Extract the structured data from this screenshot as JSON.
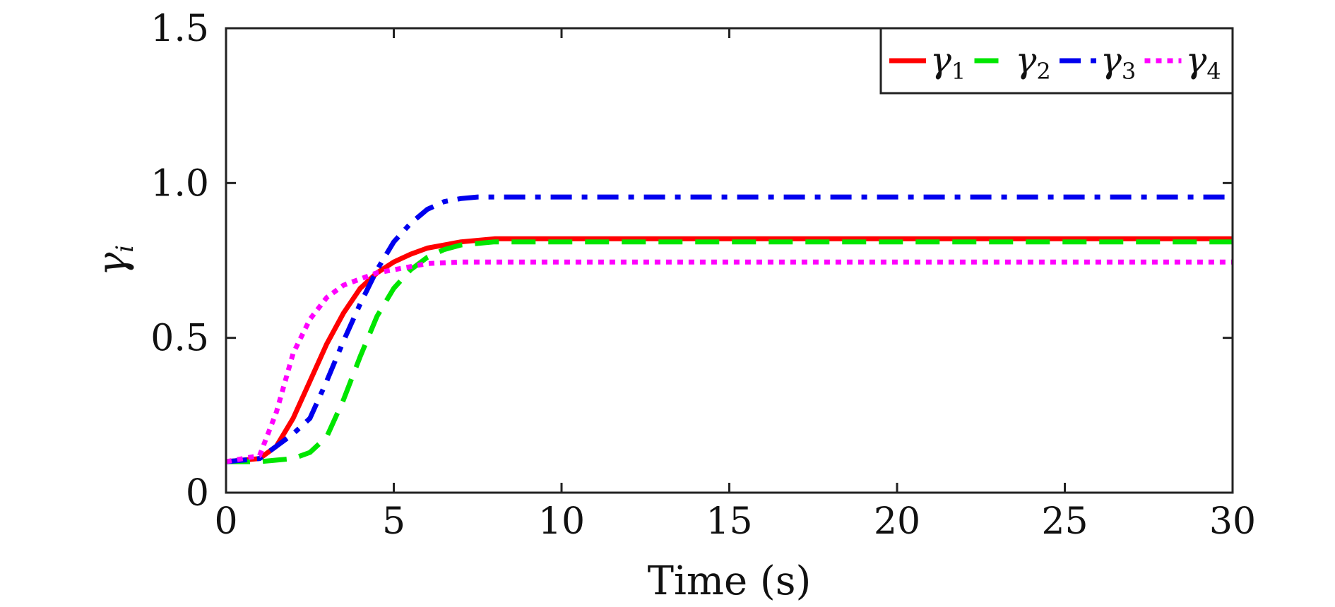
{
  "chart_data": {
    "type": "line",
    "title": "",
    "xlabel": "Time (s)",
    "ylabel_main": "γ",
    "ylabel_sub": "i",
    "xlim": [
      0,
      30
    ],
    "ylim": [
      0,
      1.5
    ],
    "xticks": [
      0,
      5,
      10,
      15,
      20,
      25,
      30
    ],
    "xtick_labels": [
      "0",
      "5",
      "10",
      "15",
      "20",
      "25",
      "30"
    ],
    "yticks": [
      0,
      0.5,
      1.0,
      1.5
    ],
    "ytick_labels": [
      "0",
      "0.5",
      "1.0",
      "1.5"
    ],
    "grid": false,
    "legend_position": "top-right",
    "series": [
      {
        "name": "γ1",
        "symbol": "γ",
        "sub": "1",
        "color": "#ff0000",
        "style": "solid",
        "x": [
          0,
          1,
          1.5,
          2,
          2.5,
          3,
          3.5,
          4,
          4.5,
          5,
          5.5,
          6,
          7,
          8,
          10,
          15,
          20,
          25,
          30
        ],
        "y": [
          0.1,
          0.11,
          0.15,
          0.24,
          0.36,
          0.48,
          0.58,
          0.66,
          0.71,
          0.745,
          0.77,
          0.79,
          0.81,
          0.82,
          0.82,
          0.82,
          0.82,
          0.82,
          0.82
        ]
      },
      {
        "name": "γ2",
        "symbol": "γ",
        "sub": "2",
        "color": "#00e600",
        "style": "dashed",
        "x": [
          0,
          1,
          1.5,
          2,
          2.5,
          3,
          3.5,
          4,
          4.5,
          5,
          5.5,
          6,
          6.5,
          7,
          8,
          10,
          15,
          20,
          25,
          30
        ],
        "y": [
          0.1,
          0.1,
          0.105,
          0.11,
          0.13,
          0.18,
          0.3,
          0.44,
          0.57,
          0.66,
          0.72,
          0.76,
          0.785,
          0.8,
          0.81,
          0.81,
          0.81,
          0.81,
          0.81,
          0.81
        ]
      },
      {
        "name": "γ3",
        "symbol": "γ",
        "sub": "3",
        "color": "#0000ee",
        "style": "dashdot",
        "x": [
          0,
          1,
          1.5,
          2,
          2.5,
          3,
          3.5,
          4,
          4.5,
          5,
          5.5,
          6,
          6.5,
          7,
          7.5,
          8,
          10,
          15,
          20,
          25,
          30
        ],
        "y": [
          0.1,
          0.11,
          0.15,
          0.19,
          0.24,
          0.36,
          0.49,
          0.61,
          0.72,
          0.81,
          0.87,
          0.915,
          0.94,
          0.95,
          0.955,
          0.955,
          0.955,
          0.955,
          0.955,
          0.955,
          0.955
        ]
      },
      {
        "name": "γ4",
        "symbol": "γ",
        "sub": "4",
        "color": "#ff00ff",
        "style": "dotted",
        "x": [
          0,
          1,
          1.5,
          2,
          2.5,
          3,
          3.5,
          4,
          4.5,
          5,
          5.5,
          6,
          7,
          8,
          10,
          15,
          20,
          25,
          30
        ],
        "y": [
          0.1,
          0.12,
          0.26,
          0.45,
          0.56,
          0.63,
          0.67,
          0.69,
          0.71,
          0.72,
          0.73,
          0.74,
          0.745,
          0.745,
          0.745,
          0.745,
          0.745,
          0.745,
          0.745
        ]
      }
    ]
  }
}
